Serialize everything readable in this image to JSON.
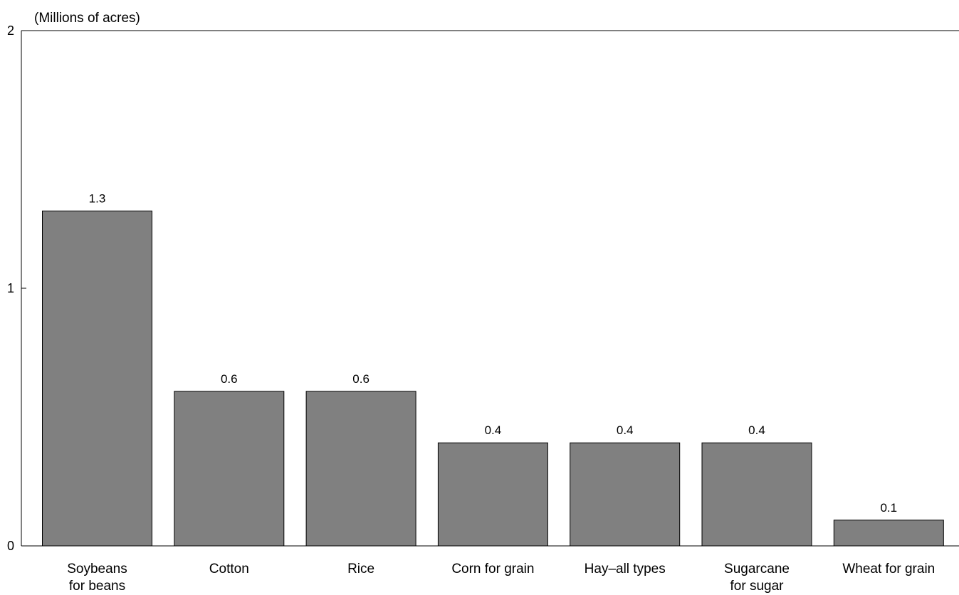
{
  "chart_data": {
    "type": "bar",
    "title": "",
    "xlabel": "",
    "ylabel": "(Millions of acres)",
    "ylim": [
      0,
      2
    ],
    "yticks": [
      "0",
      "1",
      "2"
    ],
    "categories": [
      [
        "Soybeans",
        "for beans"
      ],
      [
        "Cotton"
      ],
      [
        "Rice"
      ],
      [
        "Corn for grain"
      ],
      [
        "Hay–all types"
      ],
      [
        "Sugarcane",
        "for sugar"
      ],
      [
        "Wheat for grain"
      ]
    ],
    "values": [
      1.3,
      0.6,
      0.6,
      0.4,
      0.4,
      0.4,
      0.1
    ],
    "data_labels": [
      "1.3",
      "0.6",
      "0.6",
      "0.4",
      "0.4",
      "0.4",
      "0.1"
    ],
    "grid": false,
    "legend": "none",
    "colors": {
      "bar_fill": "#808080",
      "bar_stroke": "#000000",
      "axis": "#000000"
    }
  }
}
